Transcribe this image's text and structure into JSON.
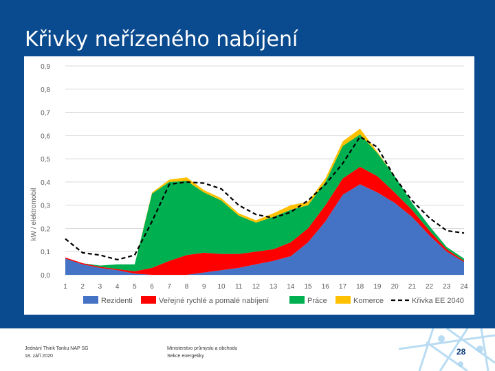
{
  "slide": {
    "title": "Křivky neřízeného nabíjení",
    "footer_left_line1": "Jednání Think Tanku NAP SG",
    "footer_left_line2": "18. září 2020",
    "footer_mid_line1": "Ministerstvo průmyslu a obchodu",
    "footer_mid_line2": "Sekce energetiky",
    "page_number": "28"
  },
  "chart_data": {
    "type": "area",
    "stacked": true,
    "ylabel": "kW / elektromobil",
    "xlabel": "",
    "ylim": [
      0,
      0.9
    ],
    "y_ticks": [
      "0,0",
      "0,1",
      "0,2",
      "0,3",
      "0,4",
      "0,5",
      "0,6",
      "0,7",
      "0,8",
      "0,9"
    ],
    "y_tick_values": [
      0,
      0.1,
      0.2,
      0.3,
      0.4,
      0.5,
      0.6,
      0.7,
      0.8,
      0.9
    ],
    "categories": [
      "1",
      "2",
      "3",
      "4",
      "5",
      "6",
      "7",
      "8",
      "9",
      "10",
      "11",
      "12",
      "13",
      "14",
      "15",
      "16",
      "17",
      "18",
      "19",
      "20",
      "21",
      "22",
      "23",
      "24"
    ],
    "grid": "horizontal",
    "legend_position": "bottom",
    "series": [
      {
        "name": "Rezidenti",
        "color": "#4472c4",
        "values": [
          0.07,
          0.045,
          0.03,
          0.02,
          0.005,
          0.0,
          0.0,
          0.0,
          0.01,
          0.02,
          0.03,
          0.045,
          0.06,
          0.08,
          0.14,
          0.23,
          0.345,
          0.39,
          0.355,
          0.31,
          0.25,
          0.17,
          0.1,
          0.055
        ]
      },
      {
        "name": "Veřejné rychlé a pomalé nabíjení",
        "color": "#ff0000",
        "values": [
          0.005,
          0.005,
          0.005,
          0.005,
          0.01,
          0.03,
          0.06,
          0.085,
          0.085,
          0.07,
          0.06,
          0.055,
          0.05,
          0.06,
          0.06,
          0.07,
          0.07,
          0.075,
          0.07,
          0.045,
          0.03,
          0.02,
          0.01,
          0.005
        ]
      },
      {
        "name": "Práce",
        "color": "#00b050",
        "values": [
          0.0,
          0.0,
          0.005,
          0.02,
          0.03,
          0.32,
          0.34,
          0.32,
          0.26,
          0.23,
          0.165,
          0.125,
          0.14,
          0.14,
          0.1,
          0.1,
          0.14,
          0.14,
          0.1,
          0.07,
          0.03,
          0.02,
          0.01,
          0.01
        ]
      },
      {
        "name": "Komerce",
        "color": "#ffc000",
        "values": [
          0.0,
          0.0,
          0.0,
          0.0,
          0.0,
          0.005,
          0.01,
          0.015,
          0.01,
          0.01,
          0.01,
          0.01,
          0.015,
          0.02,
          0.015,
          0.015,
          0.02,
          0.025,
          0.005,
          0.0,
          0.0,
          0.0,
          0.0,
          0.0
        ]
      }
    ],
    "line_series": [
      {
        "name": "Křivka EE 2040",
        "color": "#000000",
        "style": "dashed",
        "values": [
          0.155,
          0.095,
          0.085,
          0.065,
          0.085,
          0.23,
          0.39,
          0.4,
          0.395,
          0.37,
          0.3,
          0.26,
          0.245,
          0.27,
          0.32,
          0.39,
          0.48,
          0.595,
          0.55,
          0.42,
          0.32,
          0.245,
          0.19,
          0.18
        ]
      }
    ]
  }
}
